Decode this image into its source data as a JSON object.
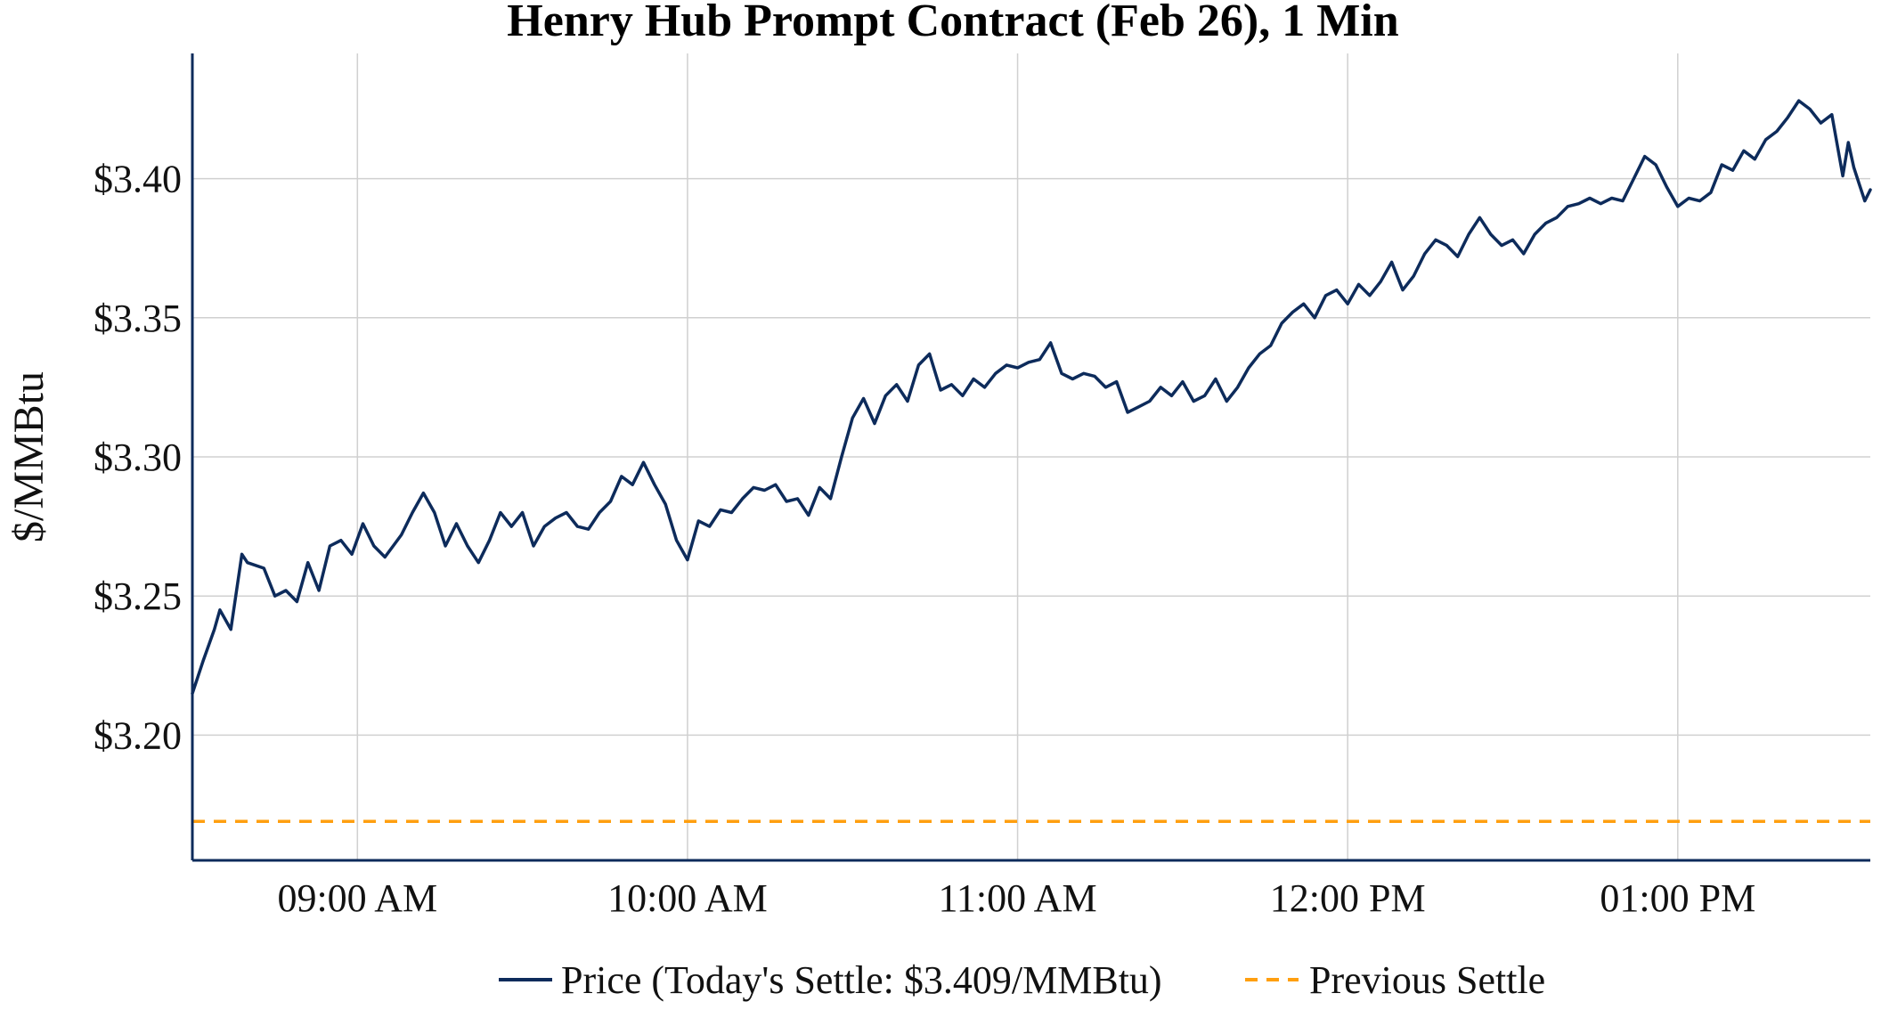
{
  "chart_data": {
    "type": "line",
    "title": "Henry Hub Prompt Contract (Feb 26), 1 Min",
    "xlabel": "",
    "ylabel": "$/MMBtu",
    "x_range": [
      "08:30",
      "13:35"
    ],
    "ylim": [
      3.155,
      3.445
    ],
    "y_ticks": [
      3.2,
      3.25,
      3.3,
      3.35,
      3.4
    ],
    "y_tick_labels": [
      "$3.20",
      "$3.25",
      "$3.30",
      "$3.35",
      "$3.40"
    ],
    "x_ticks": [
      "09:00",
      "10:00",
      "11:00",
      "12:00",
      "13:00"
    ],
    "x_tick_labels": [
      "09:00 AM",
      "10:00 AM",
      "11:00 AM",
      "12:00 PM",
      "01:00 PM"
    ],
    "grid": true,
    "legend_position": "bottom",
    "series": [
      {
        "name": "Price (Today's Settle: $3.409/MMBtu)",
        "color": "#0d2b5b",
        "style": "solid",
        "points": [
          [
            "08:30",
            3.215
          ],
          [
            "08:32",
            3.227
          ],
          [
            "08:34",
            3.238
          ],
          [
            "08:35",
            3.245
          ],
          [
            "08:37",
            3.238
          ],
          [
            "08:39",
            3.265
          ],
          [
            "08:40",
            3.262
          ],
          [
            "08:43",
            3.26
          ],
          [
            "08:45",
            3.25
          ],
          [
            "08:47",
            3.252
          ],
          [
            "08:49",
            3.248
          ],
          [
            "08:51",
            3.262
          ],
          [
            "08:53",
            3.252
          ],
          [
            "08:55",
            3.268
          ],
          [
            "08:57",
            3.27
          ],
          [
            "08:59",
            3.265
          ],
          [
            "09:01",
            3.276
          ],
          [
            "09:03",
            3.268
          ],
          [
            "09:05",
            3.264
          ],
          [
            "09:08",
            3.272
          ],
          [
            "09:10",
            3.28
          ],
          [
            "09:12",
            3.287
          ],
          [
            "09:14",
            3.28
          ],
          [
            "09:16",
            3.268
          ],
          [
            "09:18",
            3.276
          ],
          [
            "09:20",
            3.268
          ],
          [
            "09:22",
            3.262
          ],
          [
            "09:24",
            3.27
          ],
          [
            "09:26",
            3.28
          ],
          [
            "09:28",
            3.275
          ],
          [
            "09:30",
            3.28
          ],
          [
            "09:32",
            3.268
          ],
          [
            "09:34",
            3.275
          ],
          [
            "09:36",
            3.278
          ],
          [
            "09:38",
            3.28
          ],
          [
            "09:40",
            3.275
          ],
          [
            "09:42",
            3.274
          ],
          [
            "09:44",
            3.28
          ],
          [
            "09:46",
            3.284
          ],
          [
            "09:48",
            3.293
          ],
          [
            "09:50",
            3.29
          ],
          [
            "09:52",
            3.298
          ],
          [
            "09:54",
            3.29
          ],
          [
            "09:56",
            3.283
          ],
          [
            "09:58",
            3.27
          ],
          [
            "10:00",
            3.263
          ],
          [
            "10:02",
            3.277
          ],
          [
            "10:04",
            3.275
          ],
          [
            "10:06",
            3.281
          ],
          [
            "10:08",
            3.28
          ],
          [
            "10:10",
            3.285
          ],
          [
            "10:12",
            3.289
          ],
          [
            "10:14",
            3.288
          ],
          [
            "10:16",
            3.29
          ],
          [
            "10:18",
            3.284
          ],
          [
            "10:20",
            3.285
          ],
          [
            "10:22",
            3.279
          ],
          [
            "10:24",
            3.289
          ],
          [
            "10:26",
            3.285
          ],
          [
            "10:28",
            3.3
          ],
          [
            "10:30",
            3.314
          ],
          [
            "10:32",
            3.321
          ],
          [
            "10:34",
            3.312
          ],
          [
            "10:36",
            3.322
          ],
          [
            "10:38",
            3.326
          ],
          [
            "10:40",
            3.32
          ],
          [
            "10:42",
            3.333
          ],
          [
            "10:44",
            3.337
          ],
          [
            "10:46",
            3.324
          ],
          [
            "10:48",
            3.326
          ],
          [
            "10:50",
            3.322
          ],
          [
            "10:52",
            3.328
          ],
          [
            "10:54",
            3.325
          ],
          [
            "10:56",
            3.33
          ],
          [
            "10:58",
            3.333
          ],
          [
            "11:00",
            3.332
          ],
          [
            "11:02",
            3.334
          ],
          [
            "11:04",
            3.335
          ],
          [
            "11:06",
            3.341
          ],
          [
            "11:08",
            3.33
          ],
          [
            "11:10",
            3.328
          ],
          [
            "11:12",
            3.33
          ],
          [
            "11:14",
            3.329
          ],
          [
            "11:16",
            3.325
          ],
          [
            "11:18",
            3.327
          ],
          [
            "11:20",
            3.316
          ],
          [
            "11:22",
            3.318
          ],
          [
            "11:24",
            3.32
          ],
          [
            "11:26",
            3.325
          ],
          [
            "11:28",
            3.322
          ],
          [
            "11:30",
            3.327
          ],
          [
            "11:32",
            3.32
          ],
          [
            "11:34",
            3.322
          ],
          [
            "11:36",
            3.328
          ],
          [
            "11:38",
            3.32
          ],
          [
            "11:40",
            3.325
          ],
          [
            "11:42",
            3.332
          ],
          [
            "11:44",
            3.337
          ],
          [
            "11:46",
            3.34
          ],
          [
            "11:48",
            3.348
          ],
          [
            "11:50",
            3.352
          ],
          [
            "11:52",
            3.355
          ],
          [
            "11:54",
            3.35
          ],
          [
            "11:56",
            3.358
          ],
          [
            "11:58",
            3.36
          ],
          [
            "12:00",
            3.355
          ],
          [
            "12:02",
            3.362
          ],
          [
            "12:04",
            3.358
          ],
          [
            "12:06",
            3.363
          ],
          [
            "12:08",
            3.37
          ],
          [
            "12:10",
            3.36
          ],
          [
            "12:12",
            3.365
          ],
          [
            "12:14",
            3.373
          ],
          [
            "12:16",
            3.378
          ],
          [
            "12:18",
            3.376
          ],
          [
            "12:20",
            3.372
          ],
          [
            "12:22",
            3.38
          ],
          [
            "12:24",
            3.386
          ],
          [
            "12:26",
            3.38
          ],
          [
            "12:28",
            3.376
          ],
          [
            "12:30",
            3.378
          ],
          [
            "12:32",
            3.373
          ],
          [
            "12:34",
            3.38
          ],
          [
            "12:36",
            3.384
          ],
          [
            "12:38",
            3.386
          ],
          [
            "12:40",
            3.39
          ],
          [
            "12:42",
            3.391
          ],
          [
            "12:44",
            3.393
          ],
          [
            "12:46",
            3.391
          ],
          [
            "12:48",
            3.393
          ],
          [
            "12:50",
            3.392
          ],
          [
            "12:52",
            3.4
          ],
          [
            "12:54",
            3.408
          ],
          [
            "12:56",
            3.405
          ],
          [
            "12:58",
            3.397
          ],
          [
            "13:00",
            3.39
          ],
          [
            "13:02",
            3.393
          ],
          [
            "13:04",
            3.392
          ],
          [
            "13:06",
            3.395
          ],
          [
            "13:08",
            3.405
          ],
          [
            "13:10",
            3.403
          ],
          [
            "13:12",
            3.41
          ],
          [
            "13:14",
            3.407
          ],
          [
            "13:16",
            3.414
          ],
          [
            "13:18",
            3.417
          ],
          [
            "13:20",
            3.422
          ],
          [
            "13:22",
            3.428
          ],
          [
            "13:24",
            3.425
          ],
          [
            "13:26",
            3.42
          ],
          [
            "13:28",
            3.423
          ],
          [
            "13:30",
            3.401
          ],
          [
            "13:31",
            3.413
          ],
          [
            "13:32",
            3.404
          ],
          [
            "13:33",
            3.398
          ],
          [
            "13:34",
            3.392
          ],
          [
            "13:35",
            3.396
          ]
        ]
      },
      {
        "name": "Previous Settle",
        "color": "#ff9f0f",
        "style": "dashed",
        "value": 3.169
      }
    ]
  }
}
